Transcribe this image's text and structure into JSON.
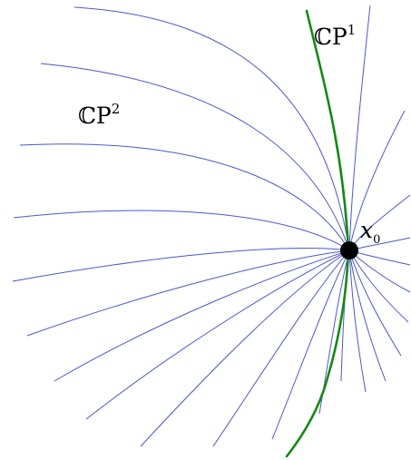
{
  "figure": {
    "labels": {
      "cp2": {
        "base": "ℂP",
        "sup": "2"
      },
      "cp1": {
        "base": "ℂP",
        "sup": "1"
      },
      "x0": {
        "base": "x",
        "sub": "0"
      }
    },
    "colors": {
      "curves": "#4a56d8",
      "green_curve": "#138a13",
      "point": "#000000",
      "background": "#ffffff"
    }
  }
}
